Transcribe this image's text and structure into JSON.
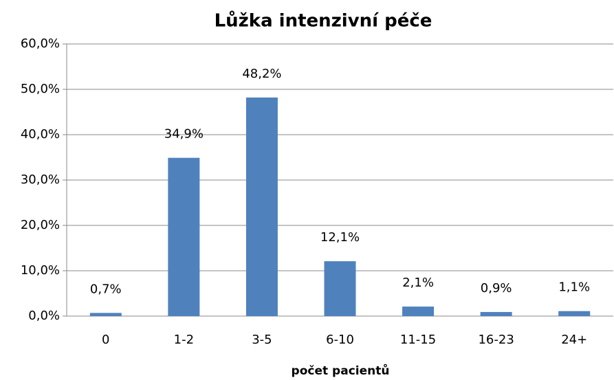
{
  "chart_data": {
    "type": "bar",
    "title": "Lůžka intenzivní péče",
    "x_label": "počet pacientů",
    "categories": [
      "0",
      "1-2",
      "3-5",
      "6-10",
      "11-15",
      "16-23",
      "24+"
    ],
    "values": [
      0.7,
      34.9,
      48.2,
      12.1,
      2.1,
      0.9,
      1.1
    ],
    "value_labels": [
      "0,7%",
      "34,9%",
      "48,2%",
      "12,1%",
      "2,1%",
      "0,9%",
      "1,1%"
    ],
    "color": "#4f81bd",
    "ylim": [
      0,
      60
    ],
    "yticks": [
      {
        "value": 0,
        "label": "0,0%"
      },
      {
        "value": 10,
        "label": "10,0%"
      },
      {
        "value": 20,
        "label": "20,0%"
      },
      {
        "value": 30,
        "label": "30,0%"
      },
      {
        "value": 40,
        "label": "40,0%"
      },
      {
        "value": 50,
        "label": "50,0%"
      },
      {
        "value": 60,
        "label": "60,0%"
      }
    ],
    "grid": true
  }
}
